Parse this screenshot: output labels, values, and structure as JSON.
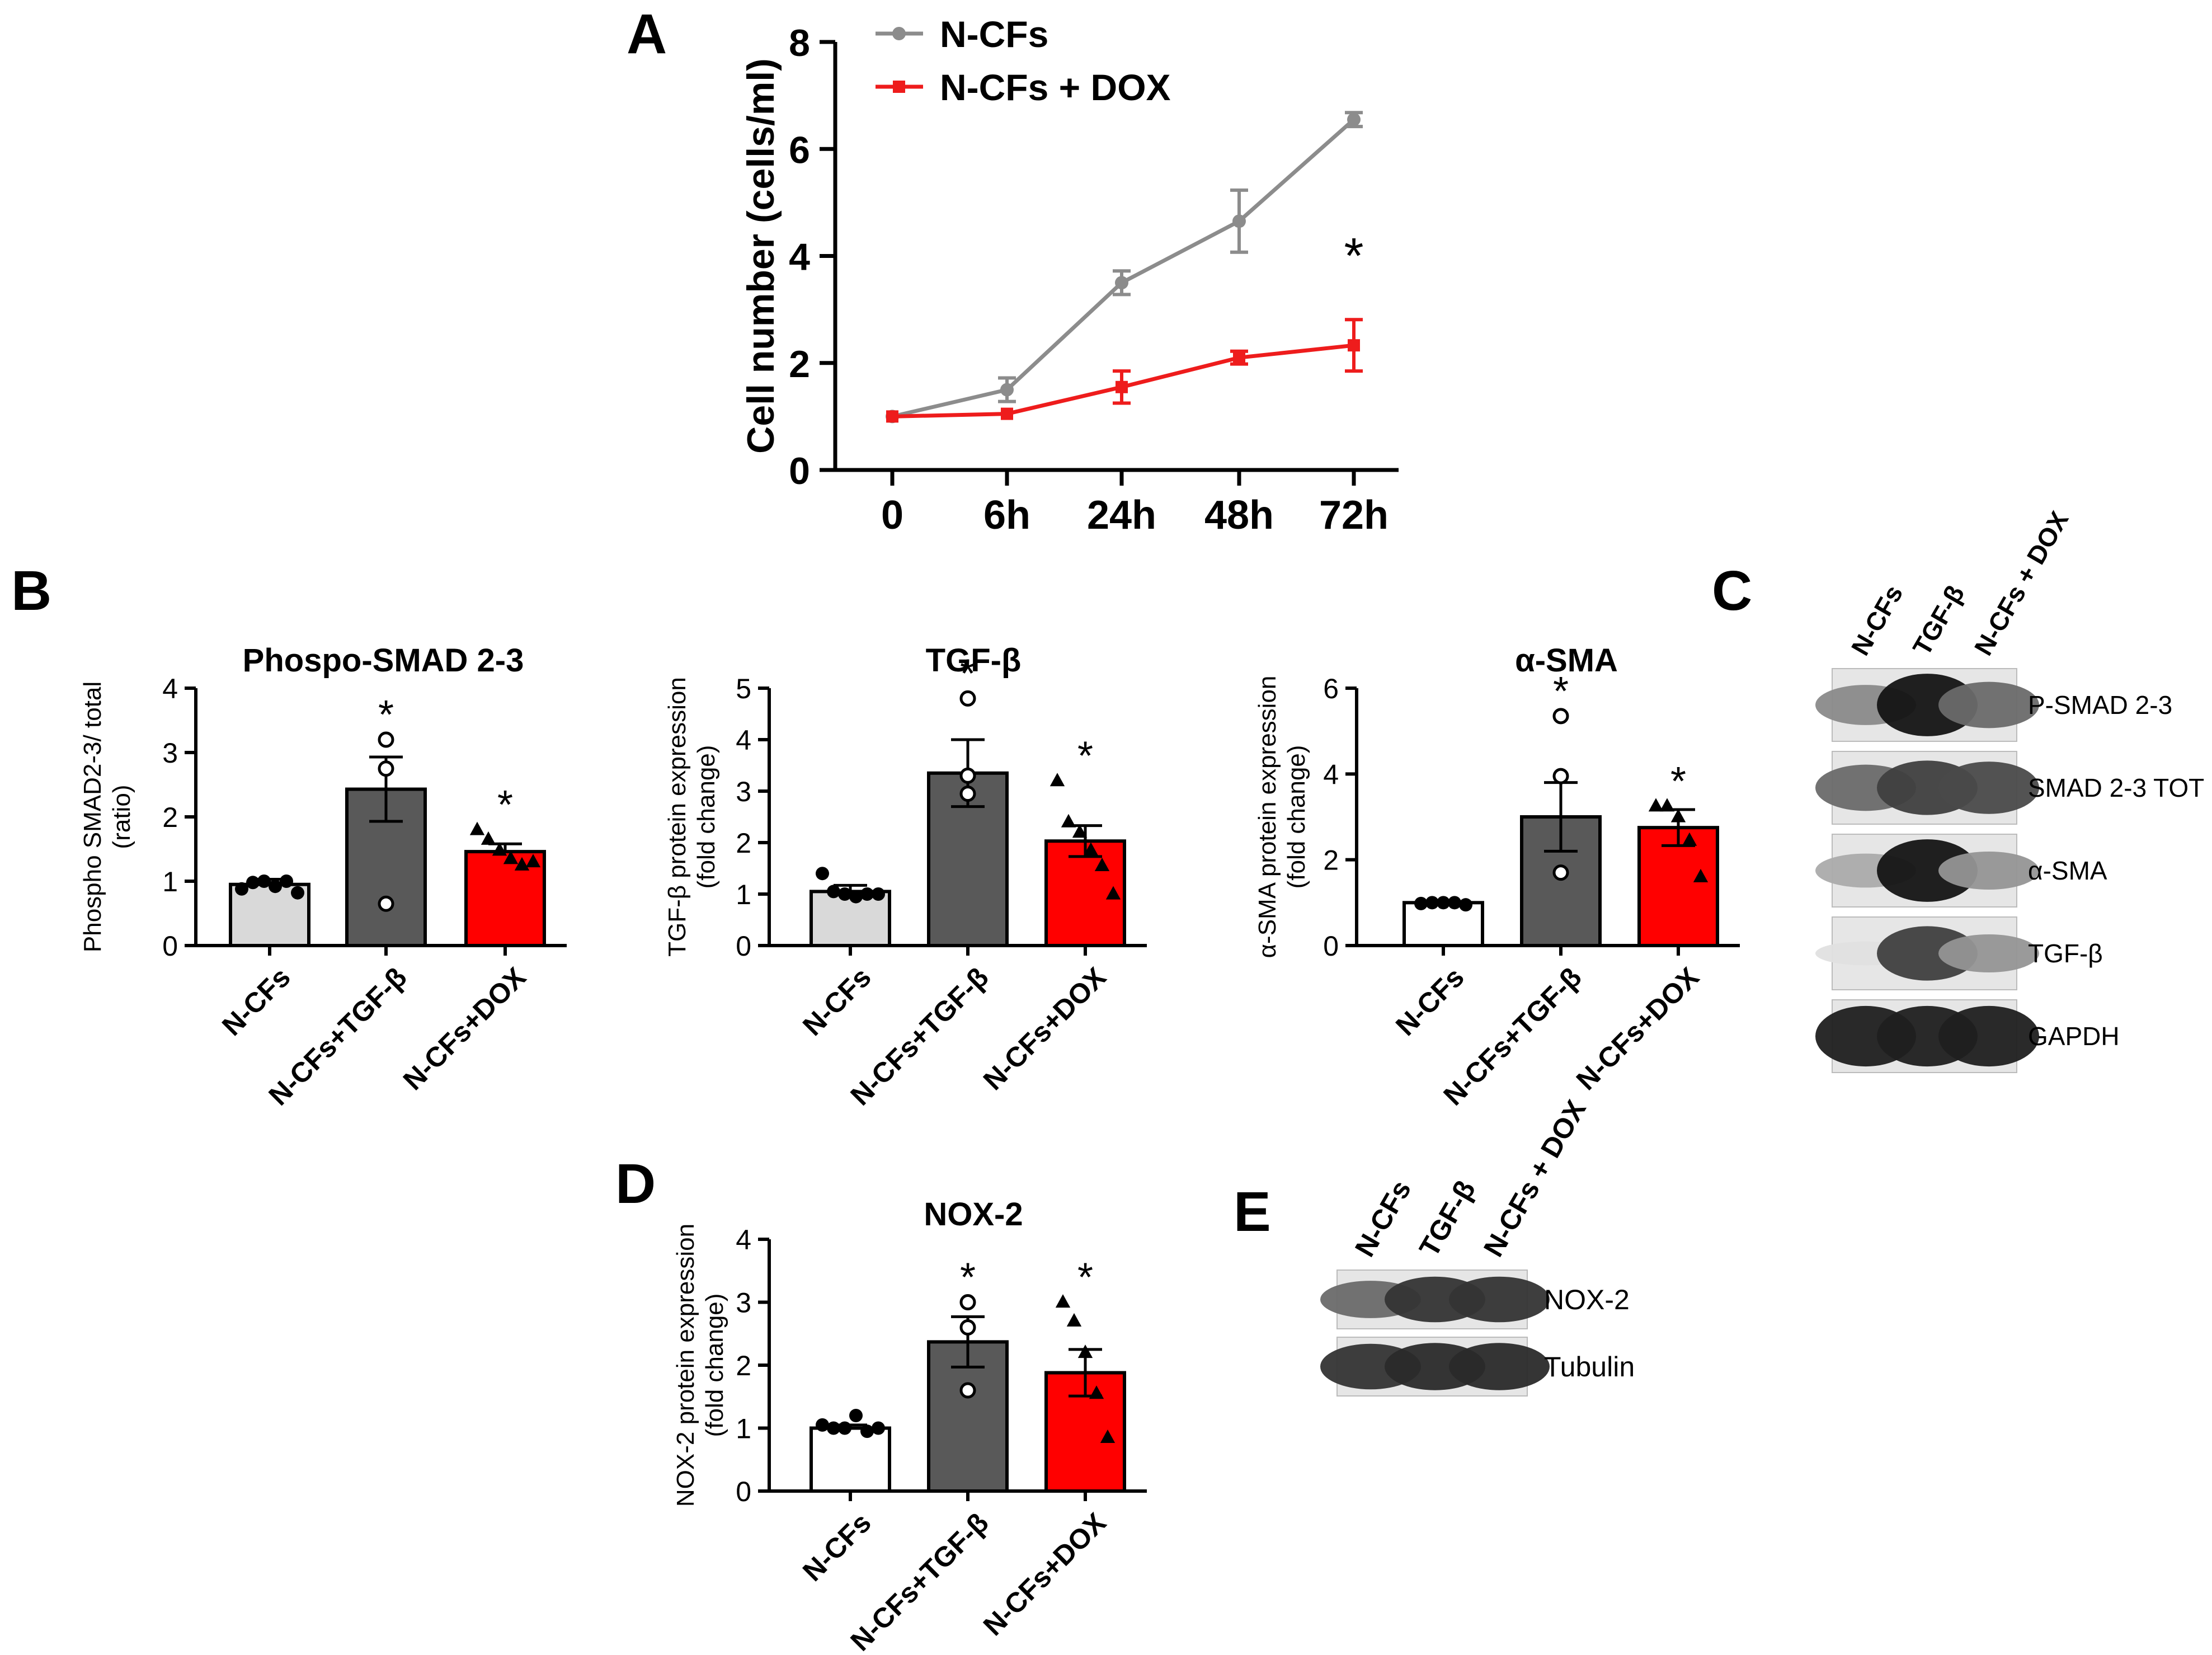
{
  "panel_letters": {
    "A": "A",
    "B": "B",
    "C": "C",
    "D": "D",
    "E": "E"
  },
  "chart_data": [
    {
      "id": "A",
      "type": "line",
      "title": "",
      "xlabel": "",
      "ylabel": "Cell number (cells/ml)",
      "categories": [
        "0",
        "6h",
        "24h",
        "48h",
        "72h"
      ],
      "ylim": [
        0,
        8
      ],
      "yticks": [
        0,
        2,
        4,
        6,
        8
      ],
      "legend_position": "top-left",
      "series": [
        {
          "name": "N-CFs",
          "color": "#8c8c8c",
          "marker": "circle",
          "values": [
            1.0,
            1.5,
            3.5,
            4.65,
            6.55
          ],
          "errors": [
            0.05,
            0.22,
            0.22,
            0.58,
            0.13
          ]
        },
        {
          "name": "N-CFs + DOX",
          "color": "#ee1c1c",
          "marker": "square",
          "values": [
            1.0,
            1.05,
            1.55,
            2.1,
            2.33
          ],
          "errors": [
            0.05,
            0.05,
            0.3,
            0.12,
            0.48
          ]
        }
      ],
      "annotations": [
        {
          "text": "*",
          "category": "72h",
          "y": 4.1
        }
      ]
    },
    {
      "id": "B1",
      "type": "bar",
      "title": "Phospo-SMAD 2-3",
      "ylabel": "Phospho SMAD2-3/ total (ratio)",
      "categories": [
        "N-CFs",
        "N-CFs+TGF-β",
        "N-CFs+DOX"
      ],
      "values": [
        0.95,
        2.43,
        1.46
      ],
      "errors": [
        0.08,
        0.5,
        0.12
      ],
      "ylim": [
        0,
        4
      ],
      "yticks": [
        0,
        1,
        2,
        3,
        4
      ],
      "colors": [
        "#d9d9d9",
        "#595959",
        "#ff0000"
      ],
      "markers": [
        "circle-filled",
        "circle-open",
        "triangle"
      ],
      "points": [
        [
          0.88,
          0.98,
          1.0,
          0.92,
          1.0,
          0.82
        ],
        [
          3.2,
          2.75,
          0.65
        ],
        [
          1.8,
          1.65,
          1.48,
          1.35,
          1.25,
          1.3
        ]
      ],
      "significance": [
        "",
        "*",
        "*"
      ]
    },
    {
      "id": "B2",
      "type": "bar",
      "title": "TGF-β",
      "ylabel": "TGF-β protein expression (fold change)",
      "categories": [
        "N-CFs",
        "N-CFs+TGF-β",
        "N-CFs+DOX"
      ],
      "values": [
        1.05,
        3.35,
        2.03
      ],
      "errors": [
        0.12,
        0.65,
        0.3
      ],
      "ylim": [
        0,
        5
      ],
      "yticks": [
        0,
        1,
        2,
        3,
        4,
        5
      ],
      "colors": [
        "#d9d9d9",
        "#595959",
        "#ff0000"
      ],
      "markers": [
        "circle-filled",
        "circle-open",
        "triangle"
      ],
      "points": [
        [
          1.4,
          1.05,
          1.0,
          0.95,
          1.0,
          1.0
        ],
        [
          4.8,
          3.3,
          2.95
        ],
        [
          3.2,
          2.4,
          2.2,
          1.85,
          1.55,
          1.0
        ]
      ],
      "significance": [
        "",
        "*",
        "*"
      ]
    },
    {
      "id": "B3",
      "type": "bar",
      "title": "α-SMA",
      "ylabel": "α-SMA protein expression (fold change)",
      "categories": [
        "N-CFs",
        "N-CFs+TGF-β",
        "N-CFs+DOX"
      ],
      "values": [
        1.0,
        3.0,
        2.75
      ],
      "errors": [
        0.03,
        0.8,
        0.42
      ],
      "ylim": [
        0,
        6
      ],
      "yticks": [
        0,
        2,
        4,
        6
      ],
      "colors": [
        "#ffffff",
        "#595959",
        "#ff0000"
      ],
      "markers": [
        "circle-filled",
        "circle-open",
        "triangle"
      ],
      "points": [
        [
          0.98,
          1.0,
          1.0,
          1.0,
          0.95
        ],
        [
          5.35,
          3.95,
          1.7
        ],
        [
          3.25,
          3.25,
          3.0,
          2.45,
          1.6
        ]
      ],
      "significance": [
        "",
        "*",
        "*"
      ]
    },
    {
      "id": "D",
      "type": "bar",
      "title": "NOX-2",
      "ylabel": "NOX-2 protein expression (fold change)",
      "categories": [
        "N-CFs",
        "N-CFs+TGF-β",
        "N-CFs+DOX"
      ],
      "values": [
        1.0,
        2.37,
        1.88
      ],
      "errors": [
        0.05,
        0.4,
        0.37
      ],
      "ylim": [
        0,
        4
      ],
      "yticks": [
        0,
        1,
        2,
        3,
        4
      ],
      "colors": [
        "#ffffff",
        "#595959",
        "#ff0000"
      ],
      "markers": [
        "circle-filled",
        "circle-open",
        "triangle"
      ],
      "points": [
        [
          1.05,
          1.0,
          1.0,
          1.2,
          0.95,
          1.0
        ],
        [
          3.0,
          2.6,
          1.6
        ],
        [
          3.0,
          2.7,
          2.2,
          1.55,
          0.85
        ]
      ],
      "significance": [
        "",
        "*",
        "*"
      ]
    }
  ],
  "blots": [
    {
      "id": "C",
      "lanes": [
        "N-CFs",
        "TGF-β",
        "N-CFs + DOX"
      ],
      "bands": [
        {
          "label": "P-SMAD 2-3",
          "intensity": [
            0.45,
            1.0,
            0.6
          ]
        },
        {
          "label": "SMAD 2-3 TOT",
          "intensity": [
            0.6,
            0.8,
            0.75
          ]
        },
        {
          "label": "α-SMA",
          "intensity": [
            0.3,
            1.0,
            0.4
          ]
        },
        {
          "label": "TGF-β",
          "intensity": [
            0.05,
            0.8,
            0.4
          ]
        },
        {
          "label": "GAPDH",
          "intensity": [
            0.95,
            0.95,
            0.95
          ]
        }
      ]
    },
    {
      "id": "E",
      "lanes": [
        "N-CFs",
        "TGF-β",
        "N-CFs + DOX"
      ],
      "bands": [
        {
          "label": "NOX-2",
          "intensity": [
            0.6,
            0.85,
            0.85
          ]
        },
        {
          "label": "Tubulin",
          "intensity": [
            0.85,
            0.9,
            0.9
          ]
        }
      ]
    }
  ]
}
